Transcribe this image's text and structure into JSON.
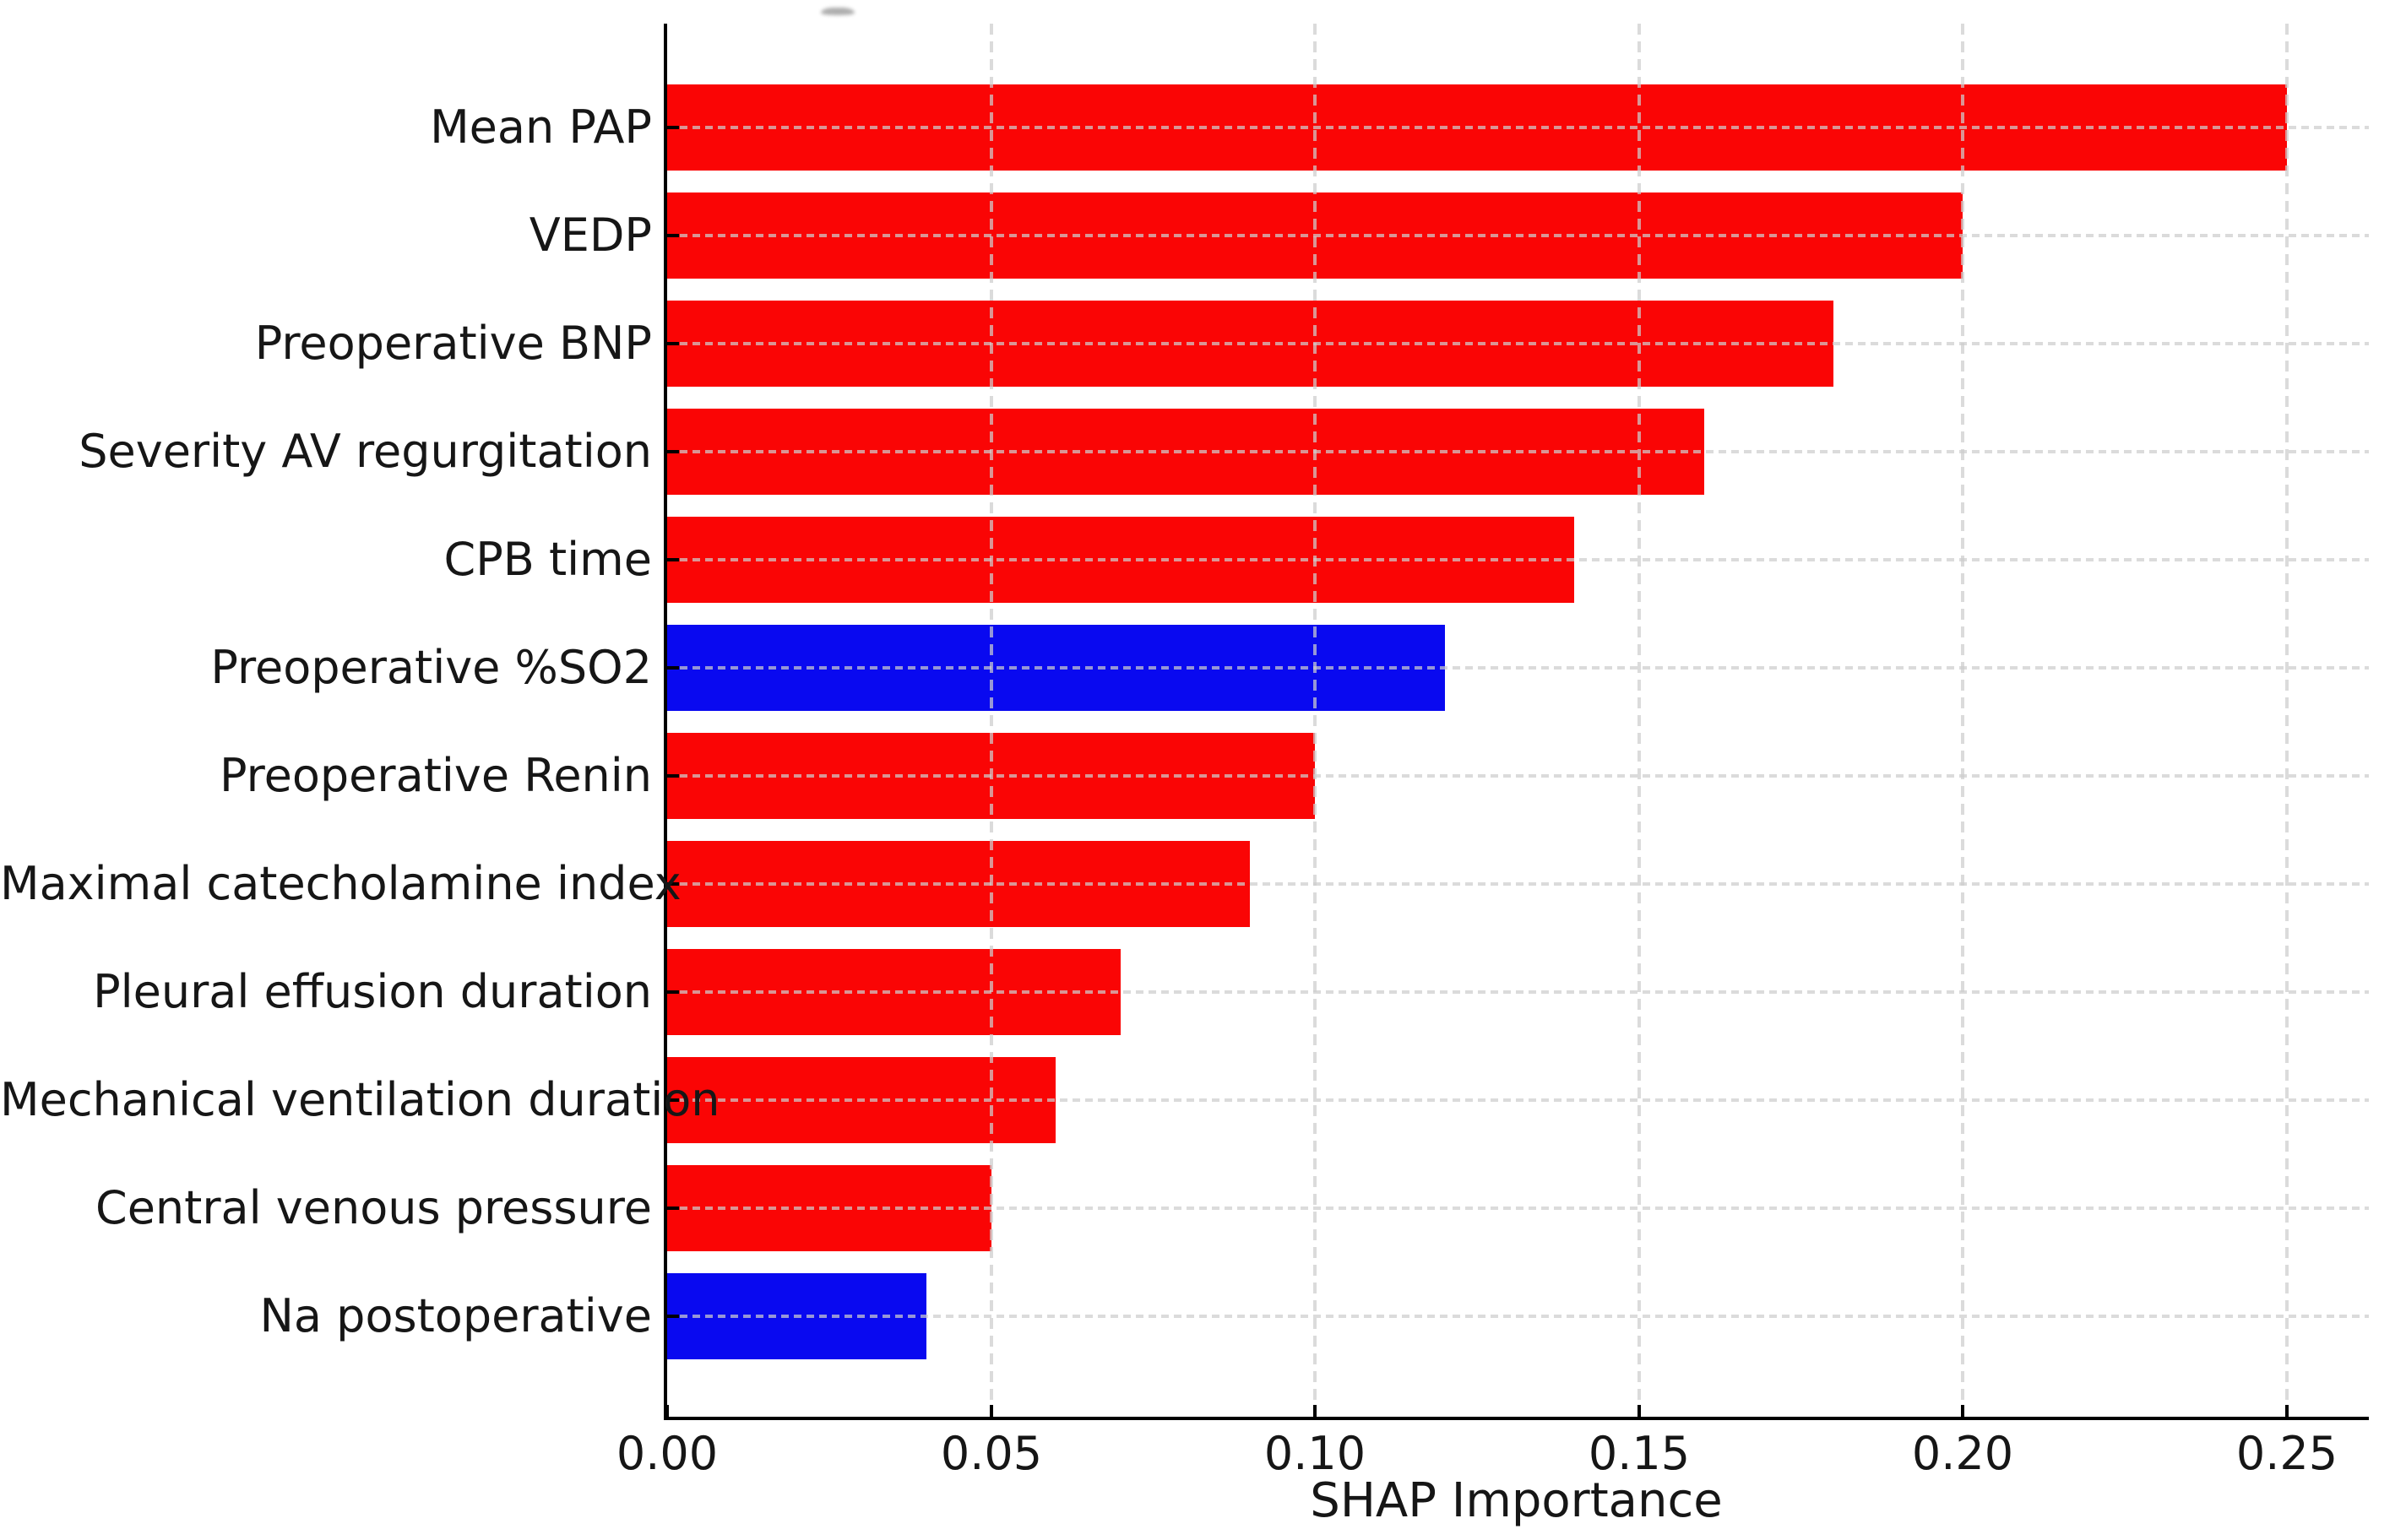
{
  "chart_data": {
    "type": "bar",
    "orientation": "horizontal",
    "title": "",
    "xlabel": "SHAP Importance",
    "ylabel": "",
    "categories": [
      "Mean PAP",
      "VEDP",
      "Preoperative BNP",
      "Severity AV regurgitation",
      "CPB time",
      "Preoperative %SO2",
      "Preoperative Renin",
      "Maximal catecholamine index",
      "Pleural effusion duration",
      "Mechanical ventilation duration",
      "Central venous pressure",
      "Na postoperative"
    ],
    "values": [
      0.25,
      0.2,
      0.18,
      0.16,
      0.14,
      0.12,
      0.1,
      0.09,
      0.07,
      0.06,
      0.05,
      0.04
    ],
    "bar_colors": [
      "#fa0505",
      "#fa0505",
      "#fa0505",
      "#fa0505",
      "#fa0505",
      "#0909f0",
      "#fa0505",
      "#fa0505",
      "#fa0505",
      "#fa0505",
      "#fa0505",
      "#0909f0"
    ],
    "x_tick_values": [
      0.0,
      0.05,
      0.1,
      0.15,
      0.2,
      0.25
    ],
    "x_tick_labels": [
      "0.00",
      "0.05",
      "0.10",
      "0.15",
      "0.20",
      "0.25"
    ],
    "xlim": [
      0,
      0.263
    ],
    "grid": "dashed light-gray; vertical lines at x ticks, horizontal lines at bar centers, drawn above bars",
    "legend": "none"
  },
  "colors": {
    "positive_bar": "#fa0505",
    "negative_bar": "#0909f0",
    "grid": "#cdcdcd",
    "axis": "#000000",
    "text": "#161616",
    "background": "#ffffff"
  }
}
